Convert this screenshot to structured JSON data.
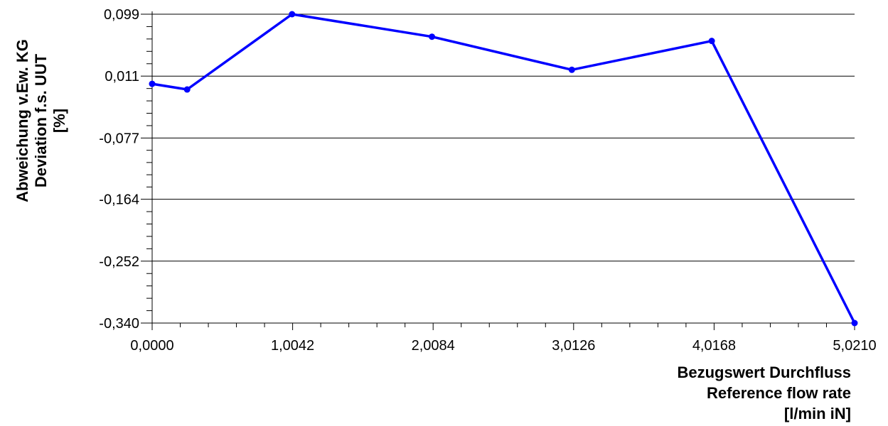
{
  "chart_data": {
    "type": "line",
    "title": "",
    "xlabel_lines": [
      "Bezugswert Durchfluss",
      "Reference flow rate",
      "[l/min iN]"
    ],
    "ylabel_lines": [
      "Abweichung v.Ew. KG",
      "Deviation f.s. UUT",
      "[%]"
    ],
    "xlim": [
      0,
      5.021
    ],
    "ylim": [
      -0.34,
      0.099
    ],
    "x_ticks": [
      0,
      1.0042,
      2.0084,
      3.0126,
      4.0168,
      5.021
    ],
    "x_tick_labels": [
      "0,0000",
      "1,0042",
      "2,0084",
      "3,0126",
      "4,0168",
      "5,0210"
    ],
    "y_ticks": [
      0.099,
      0.011,
      -0.077,
      -0.164,
      -0.252,
      -0.34
    ],
    "y_tick_labels": [
      "0,099",
      "0,011",
      "-0,077",
      "-0,164",
      "-0,252",
      "-0,340"
    ],
    "grid": "horizontal",
    "line_color": "#0000ff",
    "series": [
      {
        "x": [
          0.0,
          0.25,
          1.0,
          2.0,
          3.0,
          4.0,
          5.021
        ],
        "values": [
          0.0,
          -0.008,
          0.099,
          0.067,
          0.02,
          0.061,
          -0.34
        ]
      }
    ]
  }
}
